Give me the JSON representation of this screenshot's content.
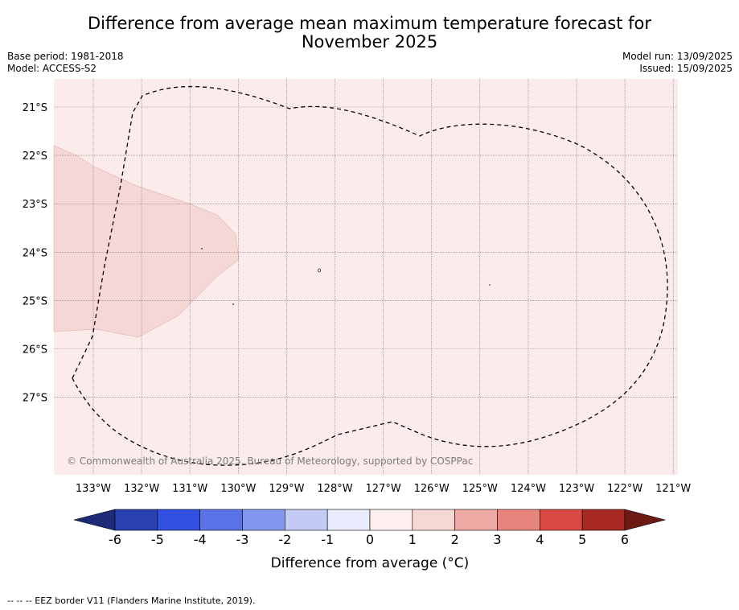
{
  "title_line1": "Difference from average mean maximum temperature forecast for",
  "title_line2": "November 2025",
  "base_period": "Base period: 1981-2018",
  "model": "Model: ACCESS-S2",
  "model_run": "Model run: 13/09/2025",
  "issued": "Issued: 15/09/2025",
  "copyright": "© Commonwealth of Australia 2025, Bureau of Meteorology, supported by COSPPac",
  "footnote": "--  --  -- EEZ border V11 (Flanders Marine Institute, 2019).",
  "map": {
    "lat_labels": [
      "21°S",
      "22°S",
      "23°S",
      "24°S",
      "25°S",
      "26°S",
      "27°S"
    ],
    "lon_labels": [
      "133°W",
      "132°W",
      "131°W",
      "130°W",
      "129°W",
      "128°W",
      "127°W",
      "126°W",
      "125°W",
      "124°W",
      "123°W",
      "122°W",
      "121°W"
    ],
    "background_class_color": "#fbeceb",
    "warm_zone_color": "#f5d8d6"
  },
  "colorbar": {
    "label": "Difference from average (°C)",
    "ticks": [
      "-6",
      "-5",
      "-4",
      "-3",
      "-2",
      "-1",
      "0",
      "1",
      "2",
      "3",
      "4",
      "5",
      "6"
    ],
    "colors": [
      "#2a3fb0",
      "#3150df",
      "#5a73e6",
      "#8497ef",
      "#c3cbf5",
      "#e9ecfc",
      "#fdefed",
      "#f5d7d4",
      "#edaaa4",
      "#e6847d",
      "#d84a41",
      "#a82a23"
    ],
    "low_extend_color": "#1c2a78",
    "high_extend_color": "#6e1a14"
  }
}
